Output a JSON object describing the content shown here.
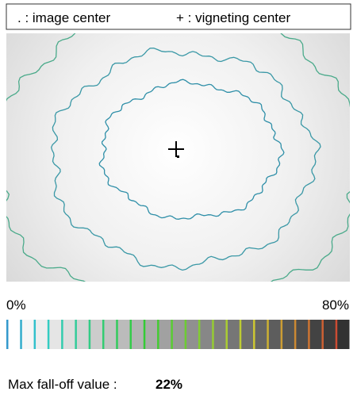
{
  "legend": {
    "image_center": ". : image center",
    "vignetting_center": "+ : vigneting center"
  },
  "scale": {
    "min_label": "0%",
    "max_label": "80%"
  },
  "result": {
    "label": "Max fall-off value :",
    "value": "22%"
  }
}
